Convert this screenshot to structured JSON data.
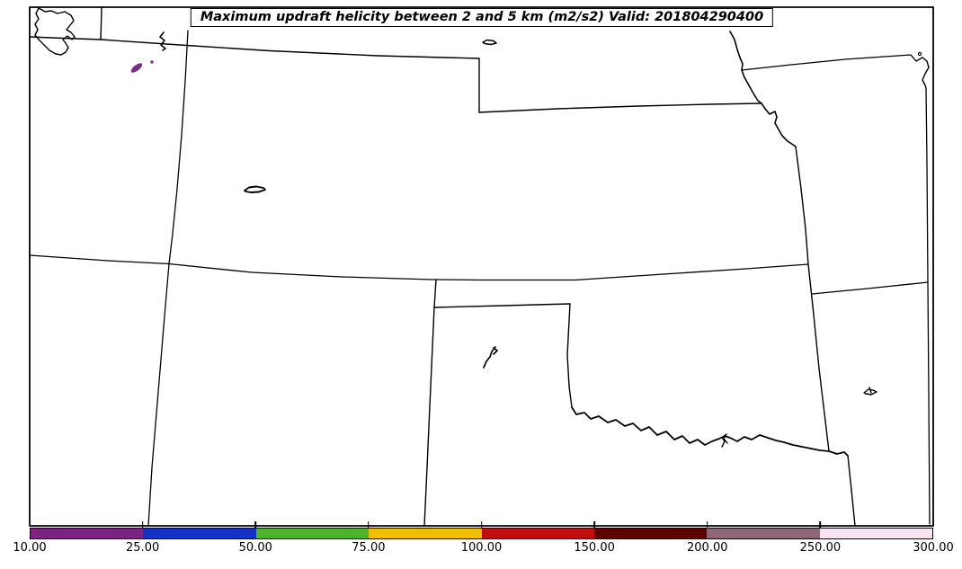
{
  "title": "Maximum updraft helicity between 2 and 5 km (m2/s2) Valid: 201804290400",
  "colorbar": {
    "tick_labels": [
      "10.00",
      "25.00",
      "50.00",
      "75.00",
      "100.00",
      "150.00",
      "200.00",
      "250.00",
      "300.00"
    ],
    "boundaries": [
      10,
      25,
      50,
      75,
      100,
      150,
      200,
      250,
      300
    ],
    "segment_colors": [
      "#7B2482",
      "#1532C8",
      "#4CB32A",
      "#F0BE00",
      "#C00D0D",
      "#5C0303",
      "#8F6778",
      "#F8E3F3"
    ],
    "units": "m2/s2"
  },
  "map": {
    "frame_color": "#000000",
    "boundary_color": "#000000",
    "background_color": "#ffffff",
    "helicity_swath": {
      "color": "#7B2D8B",
      "value_bin": "10.00-25.00"
    }
  },
  "chart_data": {
    "type": "heatmap",
    "title": "Maximum updraft helicity between 2 and 5 km (m2/s2) Valid: 201804290400",
    "legend_position": "bottom",
    "colorbar_boundaries": [
      10,
      25,
      50,
      75,
      100,
      150,
      200,
      250,
      300
    ],
    "colorbar_colors": [
      "#7B2482",
      "#1532C8",
      "#4CB32A",
      "#F0BE00",
      "#C00D0D",
      "#5C0303",
      "#8F6778",
      "#F8E3F3"
    ],
    "data_regions": [
      {
        "name": "helicity-swath-northern-colorado",
        "value_bin": "10-25",
        "color": "#7B2D8B"
      }
    ]
  }
}
